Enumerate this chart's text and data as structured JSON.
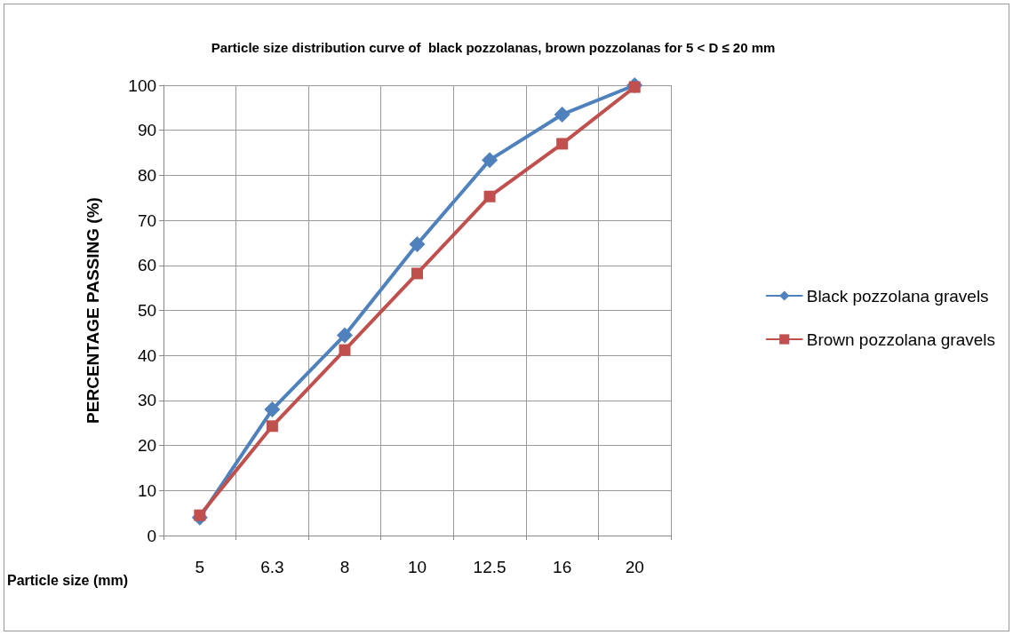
{
  "chart_data": {
    "type": "line",
    "title": "Particle size distribution curve of  black pozzolanas, brown pozzolanas for 5 < D ≤ 20 mm",
    "xlabel": "Particle size (mm)",
    "ylabel": "PERCENTAGE PASSING (%)",
    "categories": [
      "5",
      "6.3",
      "8",
      "10",
      "12.5",
      "16",
      "20"
    ],
    "series": [
      {
        "name": "Black pozzolana gravels",
        "color": "#4f81bd",
        "marker": "diamond",
        "values": [
          4,
          28,
          44.5,
          64.7,
          83.4,
          93.5,
          100
        ]
      },
      {
        "name": "Brown pozzolana gravels",
        "color": "#c0504d",
        "marker": "square",
        "values": [
          4.5,
          24.3,
          41.2,
          58.2,
          75.3,
          87,
          99.6
        ]
      }
    ],
    "ylim": [
      0,
      100
    ],
    "yticks": [
      0,
      10,
      20,
      30,
      40,
      50,
      60,
      70,
      80,
      90,
      100
    ],
    "grid": true,
    "legend": "right",
    "line_style": "solid"
  }
}
